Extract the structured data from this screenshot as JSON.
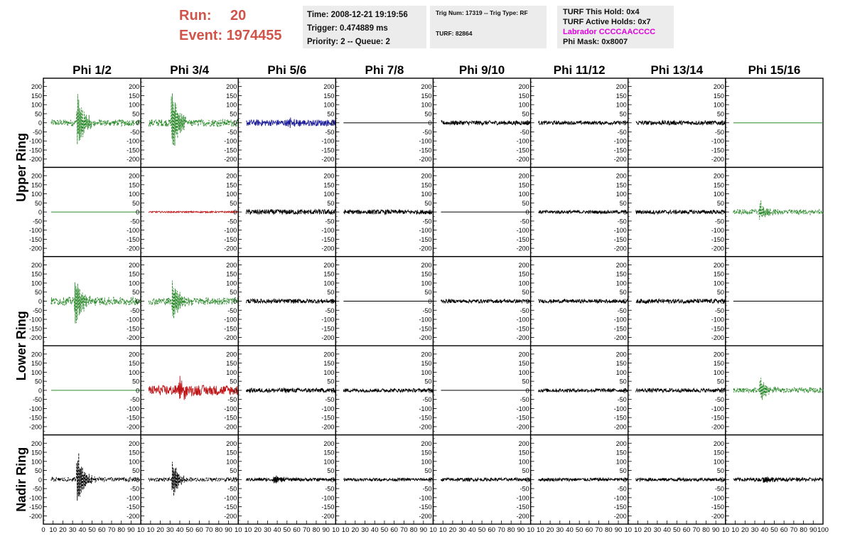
{
  "header": {
    "run_label": "Run:",
    "run_value": "20",
    "event_label": "Event:",
    "event_value": "1974455"
  },
  "info_box_1": {
    "time": "Time: 2008-12-21 19:19:56",
    "trigger": "Trigger: 0.474889 ms",
    "priority": "Priority: 2 -- Queue: 2"
  },
  "info_box_2": {
    "trig": "Trig Num: 17319 -- Trig Type: RF",
    "turf": "TURF: 82864"
  },
  "info_box_3": {
    "this_hold": "TURF This Hold: 0x4",
    "active_holds": "TURF Active Holds: 0x7",
    "labrador": "Labrador CCCCAACCCC",
    "phi_mask": "Phi Mask: 0x8007"
  },
  "chart_data": {
    "type": "line",
    "columns": [
      "Phi 1/2",
      "Phi 3/4",
      "Phi 5/6",
      "Phi 7/8",
      "Phi 9/10",
      "Phi 11/12",
      "Phi 13/14",
      "Phi 15/16"
    ],
    "ring_labels": [
      "Upper Ring",
      "Lower Ring",
      "Nadir Ring"
    ],
    "y_ticks": [
      "200",
      "150",
      "100",
      "50",
      "0",
      "-50",
      "-100",
      "-150",
      "-200"
    ],
    "y_range": [
      -230,
      230
    ],
    "x_range": [
      0,
      100
    ],
    "x_ticks_first": [
      "0",
      "10",
      "20",
      "30",
      "40",
      "50",
      "60",
      "70",
      "80",
      "90",
      "10"
    ],
    "x_ticks_middle": [
      "10",
      "20",
      "30",
      "40",
      "50",
      "60",
      "70",
      "80",
      "90",
      "10"
    ],
    "x_ticks_last": [
      "10",
      "20",
      "30",
      "40",
      "50",
      "60",
      "70",
      "80",
      "90",
      "100"
    ],
    "colors": {
      "green": "#2e8b2e",
      "blue": "#1f1f9a",
      "red": "#c0181a",
      "black": "#000000"
    },
    "panels": [
      [
        {
          "color": "green",
          "style": "dash",
          "noise": 18,
          "pulse": {
            "at": 36,
            "amp": 175
          }
        },
        {
          "color": "green",
          "style": "dash",
          "noise": 20,
          "pulse": {
            "at": 33,
            "amp": 210
          }
        },
        {
          "color": "blue",
          "style": "solid",
          "noise": 18,
          "pulse": {
            "at": 52,
            "amp": 28
          }
        },
        {
          "color": "black",
          "style": "flat",
          "noise": 0
        },
        {
          "color": "black",
          "style": "solid",
          "noise": 12
        },
        {
          "color": "black",
          "style": "solid",
          "noise": 10
        },
        {
          "color": "black",
          "style": "solid",
          "noise": 12
        },
        {
          "color": "green",
          "style": "flat",
          "noise": 0
        }
      ],
      [
        {
          "color": "green",
          "style": "flat",
          "noise": 0
        },
        {
          "color": "red",
          "style": "solid",
          "noise": 4
        },
        {
          "color": "black",
          "style": "solid",
          "noise": 14
        },
        {
          "color": "black",
          "style": "solid",
          "noise": 12
        },
        {
          "color": "black",
          "style": "flat",
          "noise": 0
        },
        {
          "color": "black",
          "style": "solid",
          "noise": 9
        },
        {
          "color": "black",
          "style": "solid",
          "noise": 11
        },
        {
          "color": "green",
          "style": "dash",
          "noise": 14,
          "pulse": {
            "at": 36,
            "amp": 55
          }
        }
      ],
      [
        {
          "color": "green",
          "style": "dash",
          "noise": 22,
          "pulse": {
            "at": 34,
            "amp": 150
          }
        },
        {
          "color": "green",
          "style": "dash",
          "noise": 20,
          "pulse": {
            "at": 34,
            "amp": 130
          }
        },
        {
          "color": "black",
          "style": "solid",
          "noise": 12
        },
        {
          "color": "black",
          "style": "flat",
          "noise": 0
        },
        {
          "color": "black",
          "style": "solid",
          "noise": 10
        },
        {
          "color": "black",
          "style": "solid",
          "noise": 10
        },
        {
          "color": "black",
          "style": "solid",
          "noise": 12
        },
        {
          "color": "black",
          "style": "flat",
          "noise": 0
        }
      ],
      [
        {
          "color": "green",
          "style": "flat",
          "noise": 0
        },
        {
          "color": "red",
          "style": "solid",
          "noise": 28,
          "pulse": {
            "at": 40,
            "amp": 70
          }
        },
        {
          "color": "black",
          "style": "solid",
          "noise": 12
        },
        {
          "color": "black",
          "style": "solid",
          "noise": 10
        },
        {
          "color": "black",
          "style": "flat",
          "noise": 0
        },
        {
          "color": "black",
          "style": "solid",
          "noise": 10
        },
        {
          "color": "black",
          "style": "solid",
          "noise": 11
        },
        {
          "color": "green",
          "style": "dash",
          "noise": 15,
          "pulse": {
            "at": 37,
            "amp": 75
          }
        }
      ],
      [
        {
          "color": "black",
          "style": "dash",
          "noise": 12,
          "pulse": {
            "at": 36,
            "amp": 170
          }
        },
        {
          "color": "black",
          "style": "dash",
          "noise": 10,
          "pulse": {
            "at": 34,
            "amp": 100
          }
        },
        {
          "color": "black",
          "style": "solid",
          "noise": 9,
          "pulse": {
            "at": 38,
            "amp": 25
          }
        },
        {
          "color": "black",
          "style": "solid",
          "noise": 8
        },
        {
          "color": "black",
          "style": "solid",
          "noise": 9
        },
        {
          "color": "black",
          "style": "solid",
          "noise": 9
        },
        {
          "color": "black",
          "style": "solid",
          "noise": 9
        },
        {
          "color": "black",
          "style": "solid",
          "noise": 10,
          "pulse": {
            "at": 40,
            "amp": 25
          }
        }
      ]
    ]
  }
}
